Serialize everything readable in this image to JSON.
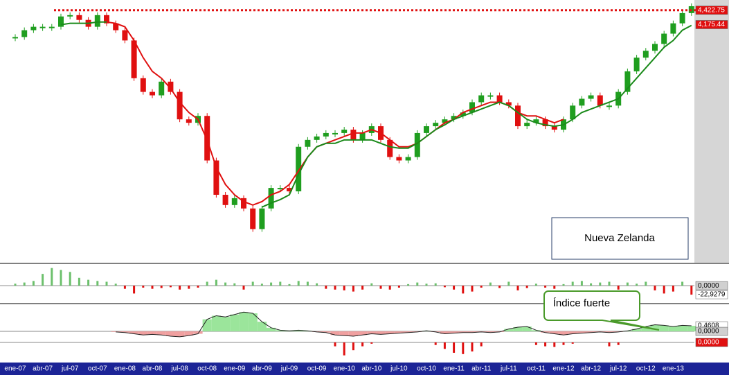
{
  "chart_data": [
    {
      "type": "candle",
      "annotation": "Nueva Zelanda",
      "categories": [
        "ene-07",
        null,
        null,
        "abr-07",
        null,
        null,
        "jul-07",
        null,
        null,
        "oct-07",
        null,
        null,
        "ene-08",
        null,
        null,
        "abr-08",
        null,
        null,
        "jul-08",
        null,
        null,
        "oct-08",
        null,
        null,
        "ene-09",
        null,
        null,
        "abr-09",
        null,
        null,
        "jul-09",
        null,
        null,
        "oct-09",
        null,
        null,
        "ene-10",
        null,
        null,
        "abr-10",
        null,
        null,
        "jul-10",
        null,
        null,
        "oct-10",
        null,
        null,
        "ene-11",
        null,
        null,
        "abr-11",
        null,
        null,
        "jul-11",
        null,
        null,
        "oct-11",
        null,
        null,
        "ene-12",
        null,
        null,
        "abr-12",
        null,
        null,
        "jul-12",
        null,
        null,
        "oct-12",
        null,
        null,
        "ene-13",
        null,
        null
      ],
      "ylim": [
        100,
        4550
      ],
      "up_color": "#1f9e1f",
      "down_color": "#e01010",
      "series": [
        {
          "values": [
            3962,
            4079,
            4138,
            4138,
            4138,
            4315,
            4338,
            4256,
            4138,
            4338,
            4197,
            4079,
            3903,
            3255,
            3020,
            2961,
            3196,
            3020,
            2549,
            2490,
            2608,
            1843,
            1254,
            1078,
            1196,
            1019,
            666,
            1019,
            1372,
            1372,
            1313,
            2078,
            2196,
            2255,
            2314,
            2314,
            2372,
            2196,
            2314,
            2431,
            2196,
            1902,
            1843,
            1902,
            2314,
            2431,
            2490,
            2549,
            2608,
            2667,
            2843,
            2961,
            2961,
            2843,
            2785,
            2431,
            2490,
            2549,
            2431,
            2372,
            2549,
            2785,
            2902,
            2961,
            2785,
            2785,
            3020,
            3373,
            3608,
            3726,
            3844,
            4020,
            4197,
            4373,
            4491
          ]
        },
        {
          "color": "#e01010",
          "values": [
            null,
            null,
            null,
            null,
            null,
            null,
            null,
            null,
            null,
            null,
            4220,
            4197,
            4138,
            3903,
            3608,
            3373,
            3255,
            3079,
            2843,
            2667,
            2549,
            2196,
            1725,
            1431,
            1254,
            1137,
            1078,
            1137,
            1254,
            1313,
            1431,
            1666,
            1902,
            2078,
            2137,
            2196,
            2255,
            2314,
            2314,
            2372,
            2314,
            2196,
            2078,
            2078,
            2137,
            2255,
            2372,
            2490,
            2549,
            2667,
            2726,
            2785,
            2843,
            2843,
            2785,
            2667,
            2608,
            2608,
            2549,
            2490,
            2549,
            null,
            null,
            null,
            null,
            null,
            null,
            null,
            null,
            null,
            null,
            null,
            null,
            null,
            null
          ]
        },
        {
          "color": "#1a8a1a",
          "values": [
            null,
            null,
            null,
            null,
            null,
            4173,
            4197,
            4197,
            4197,
            4220,
            4220,
            null,
            null,
            null,
            null,
            null,
            null,
            null,
            null,
            null,
            null,
            null,
            null,
            null,
            null,
            null,
            null,
            1042,
            1113,
            1172,
            1254,
            1608,
            1902,
            2078,
            2137,
            2137,
            2196,
            2196,
            2196,
            2196,
            2137,
            2078,
            2055,
            2055,
            2137,
            2255,
            2372,
            2455,
            2549,
            2608,
            2667,
            2726,
            2785,
            2843,
            2785,
            2667,
            2549,
            2490,
            2455,
            2431,
            2455,
            2549,
            2667,
            2726,
            2785,
            2843,
            2902,
            3079,
            3255,
            3432,
            3608,
            3785,
            3903,
            4079,
            4162
          ]
        }
      ],
      "levels": [
        {
          "value": 4422.75,
          "label": "4,422.75",
          "bg": "#e01010",
          "line": "dotted"
        },
        {
          "value": 4175.44,
          "label": "4,175.44",
          "bg": "#e01010"
        }
      ]
    },
    {
      "type": "bar",
      "ylim": [
        -44,
        55
      ],
      "pos_color": "#6cc06c",
      "neg_color": "#e01010",
      "values": [
        5,
        8,
        12,
        30,
        45,
        40,
        35,
        20,
        15,
        12,
        10,
        5,
        -8,
        -20,
        -5,
        -8,
        -6,
        -4,
        -10,
        -8,
        -5,
        10,
        15,
        8,
        6,
        -10,
        10,
        5,
        8,
        10,
        4,
        12,
        10,
        6,
        -8,
        -10,
        -12,
        -15,
        -10,
        6,
        -8,
        -10,
        -5,
        4,
        8,
        5,
        6,
        -4,
        -10,
        -20,
        -15,
        -5,
        8,
        -6,
        10,
        -12,
        -6,
        5,
        -5,
        -8,
        4,
        10,
        12,
        6,
        8,
        10,
        -10,
        8,
        5,
        10,
        -12,
        -20,
        -15,
        10,
        -22.9279
      ],
      "levels": [
        {
          "value": 0,
          "label": "0,0000",
          "bg": "#d0d0d0"
        },
        {
          "value": -22.9279,
          "label": "-22,9279",
          "bg": "#ffffff"
        }
      ]
    },
    {
      "type": "area",
      "ylim": [
        -0.86,
        2.19
      ],
      "pos_color": "#9be59b",
      "neg_color": "#f0a0a0",
      "annotation": "Índice fuerte",
      "values": [
        null,
        null,
        null,
        null,
        null,
        null,
        null,
        null,
        null,
        null,
        null,
        -0.05,
        -0.1,
        -0.2,
        -0.3,
        -0.25,
        -0.3,
        -0.4,
        -0.45,
        -0.35,
        -0.2,
        1.0,
        1.3,
        1.2,
        1.4,
        1.6,
        1.5,
        0.8,
        0.3,
        0.1,
        0.05,
        0.1,
        0.05,
        -0.05,
        -0.1,
        -0.3,
        -0.35,
        -0.4,
        -0.3,
        -0.2,
        -0.25,
        -0.2,
        -0.15,
        -0.1,
        -0.05,
        0.05,
        -0.05,
        -0.2,
        -0.15,
        -0.1,
        -0.1,
        -0.05,
        -0.1,
        -0.05,
        0.2,
        0.35,
        0.4,
        0.1,
        -0.1,
        -0.2,
        -0.3,
        -0.2,
        -0.15,
        -0.1,
        -0.05,
        -0.1,
        -0.05,
        0.05,
        0.2,
        0.4,
        0.55,
        0.5,
        0.4,
        0.5,
        0.4608
      ],
      "levels": [
        {
          "value": 0.4608,
          "label": "0,4608",
          "bg": "#ffffff"
        },
        {
          "value": 0,
          "label": "0,0000",
          "bg": "#d0d0d0"
        }
      ]
    },
    {
      "type": "bar",
      "ylim": [
        -1.5,
        0
      ],
      "pos_color": "#6cc06c",
      "neg_color": "#e01010",
      "values": [
        null,
        null,
        null,
        null,
        null,
        null,
        null,
        null,
        null,
        null,
        null,
        null,
        null,
        null,
        null,
        null,
        null,
        null,
        null,
        null,
        null,
        null,
        null,
        null,
        null,
        null,
        null,
        null,
        null,
        null,
        null,
        null,
        null,
        null,
        null,
        -0.3,
        -1.0,
        -0.6,
        -0.3,
        -0.1,
        null,
        null,
        null,
        null,
        null,
        null,
        -0.2,
        -0.5,
        -0.8,
        -0.9,
        -0.7,
        -0.3,
        null,
        null,
        null,
        null,
        null,
        -0.2,
        -0.3,
        -0.35,
        -0.2,
        -0.1,
        null,
        null,
        null,
        -0.3,
        -0.2,
        null,
        null,
        null,
        null,
        null,
        null,
        null,
        null
      ],
      "levels": [
        {
          "value": 0,
          "label": "0,0000",
          "bg": "#e01010"
        }
      ]
    }
  ]
}
